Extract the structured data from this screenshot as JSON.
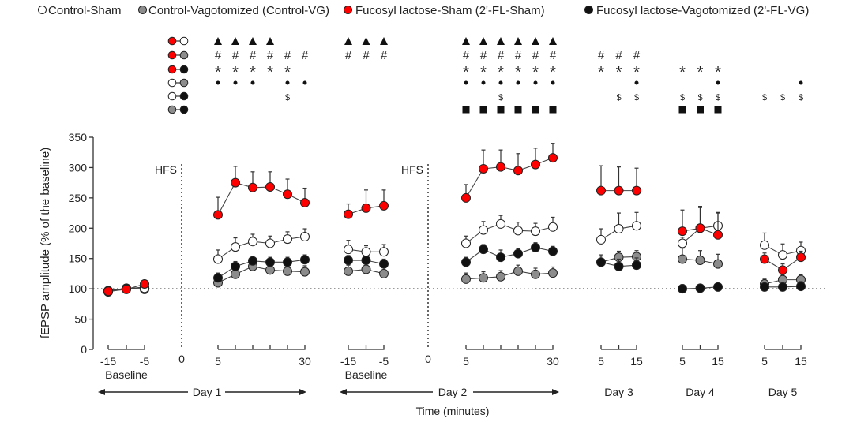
{
  "chart_data": {
    "type": "line",
    "title": "",
    "xlabel": "Time (minutes)",
    "ylabel": "fEPSP amplitude (% of the baseline)",
    "ylim": [
      0,
      350
    ],
    "yticks": [
      0,
      50,
      100,
      150,
      200,
      250,
      300,
      350
    ],
    "reference_line": 100,
    "grid": false,
    "legend_position": "top",
    "stimulus_label": "HFS",
    "series": [
      {
        "key": "sham",
        "name": "Control-Sham",
        "color": "#ffffff"
      },
      {
        "key": "vg",
        "name": "Control-Vagotomized (Control-VG)",
        "color": "#8c8c8c"
      },
      {
        "key": "flsham",
        "name": "Fucosyl lactose-Sham (2'-FL-Sham)",
        "color": "#ff0000"
      },
      {
        "key": "flvg",
        "name": "Fucosyl lactose-Vagotomized (2'-FL-VG)",
        "color": "#111111"
      }
    ],
    "segments": [
      {
        "id": "d1base",
        "label": "Baseline",
        "x": [
          -15,
          -10,
          -5
        ],
        "tick_labels": [
          "-15",
          "-5"
        ],
        "values": {
          "sham": [
            95,
            100,
            101
          ],
          "vg": [
            97,
            101,
            99
          ],
          "flsham": [
            96,
            99,
            108
          ],
          "flvg": [
            96,
            100,
            103
          ]
        },
        "errors": {
          "sham": [
            3,
            3,
            3
          ],
          "vg": [
            3,
            3,
            3
          ],
          "flsham": [
            3,
            3,
            4
          ],
          "flvg": [
            3,
            3,
            3
          ]
        }
      },
      {
        "id": "d1post",
        "label": "",
        "x": [
          5,
          10,
          15,
          20,
          25,
          30
        ],
        "tick_labels": [
          "5",
          "30"
        ],
        "values": {
          "sham": [
            149,
            169,
            178,
            175,
            182,
            186
          ],
          "vg": [
            110,
            124,
            137,
            131,
            129,
            128
          ],
          "flsham": [
            222,
            275,
            267,
            268,
            256,
            242
          ],
          "flvg": [
            118,
            137,
            146,
            144,
            144,
            148
          ]
        },
        "errors": {
          "sham": [
            15,
            15,
            12,
            12,
            12,
            13
          ],
          "vg": [
            10,
            10,
            10,
            10,
            10,
            10
          ],
          "flsham": [
            29,
            27,
            26,
            25,
            25,
            24
          ],
          "flvg": [
            8,
            8,
            8,
            8,
            8,
            8
          ]
        }
      },
      {
        "id": "d2base",
        "label": "Baseline",
        "x": [
          -15,
          -10,
          -5
        ],
        "tick_labels": [
          "-15",
          "-5"
        ],
        "values": {
          "sham": [
            165,
            161,
            161
          ],
          "vg": [
            129,
            132,
            125
          ],
          "flsham": [
            223,
            233,
            237
          ],
          "flvg": [
            147,
            147,
            141
          ]
        },
        "errors": {
          "sham": [
            15,
            10,
            12
          ],
          "vg": [
            10,
            10,
            10
          ],
          "flsham": [
            17,
            30,
            26
          ],
          "flvg": [
            8,
            8,
            8
          ]
        }
      },
      {
        "id": "d2post",
        "label": "",
        "x": [
          5,
          10,
          15,
          20,
          25,
          30
        ],
        "tick_labels": [
          "5",
          "30"
        ],
        "values": {
          "sham": [
            175,
            197,
            207,
            196,
            195,
            202
          ],
          "vg": [
            116,
            118,
            120,
            129,
            124,
            126
          ],
          "flsham": [
            250,
            298,
            301,
            295,
            305,
            316
          ],
          "flvg": [
            144,
            165,
            152,
            158,
            168,
            162
          ]
        },
        "errors": {
          "sham": [
            12,
            14,
            14,
            14,
            13,
            16
          ],
          "vg": [
            10,
            10,
            10,
            10,
            10,
            10
          ],
          "flsham": [
            22,
            31,
            28,
            28,
            27,
            24
          ],
          "flvg": [
            8,
            8,
            12,
            8,
            8,
            8
          ]
        }
      },
      {
        "id": "d3",
        "label": "Day 3",
        "x": [
          5,
          10,
          15
        ],
        "tick_labels": [
          "5",
          "15"
        ],
        "values": {
          "sham": [
            181,
            199,
            204
          ],
          "vg": [
            144,
            152,
            153
          ],
          "flsham": [
            262,
            262,
            262
          ],
          "flvg": [
            144,
            137,
            139
          ]
        },
        "errors": {
          "sham": [
            18,
            26,
            22
          ],
          "vg": [
            10,
            10,
            10
          ],
          "flsham": [
            41,
            39,
            37
          ],
          "flvg": [
            12,
            12,
            12
          ]
        }
      },
      {
        "id": "d4",
        "label": "Day 4",
        "x": [
          5,
          10,
          15
        ],
        "tick_labels": [
          "5",
          "15"
        ],
        "values": {
          "sham": [
            175,
            200,
            204
          ],
          "vg": [
            149,
            147,
            141
          ],
          "flsham": [
            195,
            200,
            189
          ],
          "flvg": [
            100,
            101,
            103
          ]
        },
        "errors": {
          "sham": [
            10,
            34,
            22
          ],
          "vg": [
            18,
            16,
            16
          ],
          "flsham": [
            35,
            36,
            36
          ],
          "flvg": [
            7,
            6,
            6
          ]
        }
      },
      {
        "id": "d5",
        "label": "Day 5",
        "x": [
          5,
          10,
          15
        ],
        "tick_labels": [
          "5",
          "15"
        ],
        "values": {
          "sham": [
            172,
            156,
            163
          ],
          "vg": [
            108,
            115,
            115
          ],
          "flsham": [
            149,
            131,
            152
          ],
          "flvg": [
            103,
            103,
            104
          ]
        },
        "errors": {
          "sham": [
            20,
            18,
            14
          ],
          "vg": [
            8,
            8,
            8
          ],
          "flsham": [
            10,
            10,
            10
          ],
          "flvg": [
            8,
            8,
            8
          ]
        }
      }
    ],
    "day_labels": {
      "day1": "Day 1",
      "day2": "Day 2",
      "zero": "0"
    },
    "significance": {
      "comparisons": [
        {
          "a": "flsham",
          "b": "sham",
          "symbol": "▲"
        },
        {
          "a": "flsham",
          "b": "vg",
          "symbol": "#"
        },
        {
          "a": "flsham",
          "b": "flvg",
          "symbol": "*"
        },
        {
          "a": "sham",
          "b": "vg",
          "symbol": "•"
        },
        {
          "a": "sham",
          "b": "flvg",
          "symbol": "$"
        },
        {
          "a": "vg",
          "b": "flvg",
          "symbol": "■"
        }
      ],
      "marks": {
        "d1post": [
          [
            0,
            1,
            2,
            3
          ],
          [
            0,
            1,
            2,
            3,
            4,
            5
          ],
          [
            0,
            1,
            2,
            3,
            4
          ],
          [
            0,
            1,
            2,
            4,
            5
          ],
          [
            4
          ],
          []
        ],
        "d2base": [
          [
            0,
            1,
            2
          ],
          [
            0,
            1,
            2
          ],
          [],
          [],
          [],
          []
        ],
        "d2post": [
          [
            0,
            1,
            2,
            3,
            4,
            5
          ],
          [
            0,
            1,
            2,
            3,
            4,
            5
          ],
          [
            0,
            1,
            2,
            3,
            4,
            5
          ],
          [
            0,
            1,
            2,
            3,
            4,
            5
          ],
          [
            2
          ],
          [
            0,
            1,
            2,
            3,
            4,
            5
          ]
        ],
        "d3": [
          [],
          [
            0,
            1,
            2
          ],
          [
            0,
            1,
            2
          ],
          [
            2
          ],
          [
            1,
            2
          ],
          []
        ],
        "d4": [
          [],
          [],
          [
            0,
            1,
            2
          ],
          [
            2
          ],
          [
            0,
            1,
            2
          ],
          [
            0,
            1,
            2
          ]
        ],
        "d5": [
          [],
          [],
          [],
          [
            2
          ],
          [
            0,
            1,
            2
          ],
          []
        ]
      }
    }
  }
}
